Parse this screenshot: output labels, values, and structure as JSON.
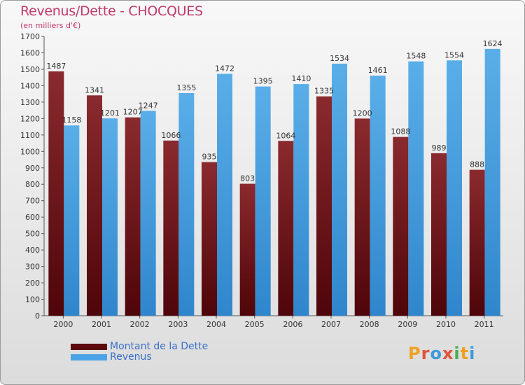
{
  "header": {
    "title": "Revenus/Dette - CHOCQUES",
    "subtitle": "(en milliers d'€)"
  },
  "chart_data": {
    "type": "bar",
    "categories": [
      "2000",
      "2001",
      "2002",
      "2003",
      "2004",
      "2005",
      "2006",
      "2007",
      "2008",
      "2009",
      "2010",
      "2011"
    ],
    "series": [
      {
        "name": "Montant de la Dette",
        "color": "#6b1016",
        "values": [
          1487,
          1341,
          1207,
          1066,
          935,
          803,
          1064,
          1335,
          1200,
          1088,
          989,
          888
        ]
      },
      {
        "name": "Revenus",
        "color": "#4aa3e6",
        "values": [
          1158,
          1201,
          1247,
          1355,
          1472,
          1395,
          1410,
          1534,
          1461,
          1548,
          1554,
          1624
        ]
      }
    ],
    "y_ticks": [
      0,
      100,
      200,
      300,
      400,
      500,
      600,
      700,
      800,
      900,
      1000,
      1100,
      1200,
      1300,
      1400,
      1500,
      1600,
      1700
    ],
    "ylim": [
      0,
      1700
    ],
    "grid": false,
    "legend_position": "bottom-left"
  },
  "legend": {
    "items": [
      {
        "label": "Montant de la Dette",
        "color": "#6b1016"
      },
      {
        "label": "Revenus",
        "color": "#4aa3e6"
      }
    ]
  },
  "logo": {
    "text": "Proxiti",
    "letters": [
      {
        "ch": "P",
        "color": "#f0a020"
      },
      {
        "ch": "r",
        "color": "#e0543c"
      },
      {
        "ch": "o",
        "color": "#3e9ad8"
      },
      {
        "ch": "x",
        "color": "#e0543c"
      },
      {
        "ch": "i",
        "color": "#4cae4c"
      },
      {
        "ch": "t",
        "color": "#f0a020"
      },
      {
        "ch": "i",
        "color": "#3e9ad8"
      }
    ]
  }
}
